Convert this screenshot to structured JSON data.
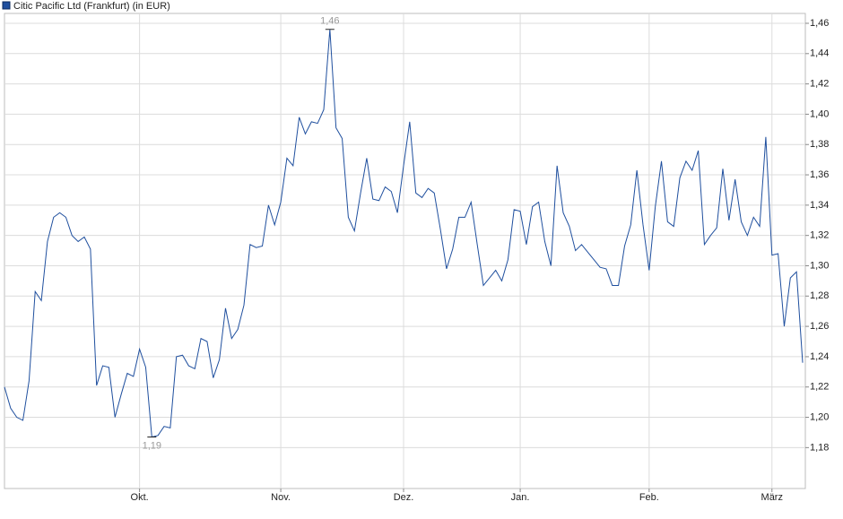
{
  "chart_data": {
    "type": "line",
    "series": [
      {
        "name": "Citic Pacific Ltd (Frankfurt) (in EUR)",
        "color": "#1f4f9e",
        "values": [
          1.22,
          1.206,
          1.2,
          1.198,
          1.224,
          1.283,
          1.277,
          1.316,
          1.332,
          1.335,
          1.332,
          1.32,
          1.316,
          1.319,
          1.311,
          1.221,
          1.234,
          1.233,
          1.2,
          1.215,
          1.229,
          1.227,
          1.245,
          1.233,
          1.187,
          1.188,
          1.194,
          1.193,
          1.24,
          1.241,
          1.234,
          1.232,
          1.252,
          1.25,
          1.226,
          1.238,
          1.272,
          1.252,
          1.258,
          1.274,
          1.314,
          1.312,
          1.313,
          1.34,
          1.327,
          1.342,
          1.371,
          1.366,
          1.398,
          1.387,
          1.395,
          1.394,
          1.403,
          1.456,
          1.391,
          1.384,
          1.332,
          1.323,
          1.348,
          1.371,
          1.344,
          1.343,
          1.352,
          1.349,
          1.335,
          1.366,
          1.395,
          1.348,
          1.345,
          1.351,
          1.348,
          1.324,
          1.298,
          1.311,
          1.332,
          1.332,
          1.342,
          1.314,
          1.287,
          1.292,
          1.297,
          1.29,
          1.304,
          1.337,
          1.336,
          1.314,
          1.339,
          1.342,
          1.316,
          1.3,
          1.366,
          1.335,
          1.326,
          1.31,
          1.314,
          1.309,
          1.304,
          1.299,
          1.298,
          1.287,
          1.287,
          1.313,
          1.327,
          1.363,
          1.327,
          1.297,
          1.339,
          1.369,
          1.329,
          1.326,
          1.358,
          1.369,
          1.363,
          1.376,
          1.314,
          1.32,
          1.325,
          1.364,
          1.33,
          1.357,
          1.329,
          1.32,
          1.332,
          1.326,
          1.385,
          1.307,
          1.308,
          1.26,
          1.292,
          1.296,
          1.236
        ]
      }
    ],
    "categories": [
      null,
      null,
      null,
      null,
      null,
      null,
      null,
      null,
      null,
      null,
      null,
      null,
      null,
      null,
      null,
      null,
      null,
      null,
      null,
      null,
      null,
      null,
      "Okt.",
      null,
      null,
      null,
      null,
      null,
      null,
      null,
      null,
      null,
      null,
      null,
      null,
      null,
      null,
      null,
      null,
      null,
      null,
      null,
      null,
      null,
      null,
      "Nov.",
      null,
      null,
      null,
      null,
      null,
      null,
      null,
      null,
      null,
      null,
      null,
      null,
      null,
      null,
      null,
      null,
      null,
      null,
      null,
      "Dez.",
      null,
      null,
      null,
      null,
      null,
      null,
      null,
      null,
      null,
      null,
      null,
      null,
      null,
      null,
      null,
      null,
      null,
      null,
      "Jan.",
      null,
      null,
      null,
      null,
      null,
      null,
      null,
      null,
      null,
      null,
      null,
      null,
      null,
      null,
      null,
      null,
      null,
      null,
      null,
      null,
      "Feb.",
      null,
      null,
      null,
      null,
      null,
      null,
      null,
      null,
      null,
      null,
      null,
      null,
      null,
      null,
      null,
      null,
      null,
      null,
      null,
      "März",
      null,
      null,
      null,
      null,
      null
    ],
    "high_label": "1,46",
    "low_label": "1,19",
    "ylim": [
      1.153,
      1.4665
    ],
    "yticks": [
      {
        "value": 1.18,
        "label": "1,18"
      },
      {
        "value": 1.2,
        "label": "1,20"
      },
      {
        "value": 1.22,
        "label": "1,22"
      },
      {
        "value": 1.24,
        "label": "1,24"
      },
      {
        "value": 1.26,
        "label": "1,26"
      },
      {
        "value": 1.28,
        "label": "1,28"
      },
      {
        "value": 1.3,
        "label": "1,30"
      },
      {
        "value": 1.32,
        "label": "1,32"
      },
      {
        "value": 1.34,
        "label": "1,34"
      },
      {
        "value": 1.36,
        "label": "1,36"
      },
      {
        "value": 1.38,
        "label": "1,38"
      },
      {
        "value": 1.4,
        "label": "1,40"
      },
      {
        "value": 1.42,
        "label": "1,42"
      },
      {
        "value": 1.44,
        "label": "1,44"
      },
      {
        "value": 1.46,
        "label": "1,46"
      }
    ],
    "grid": true,
    "legend": "top-left"
  }
}
